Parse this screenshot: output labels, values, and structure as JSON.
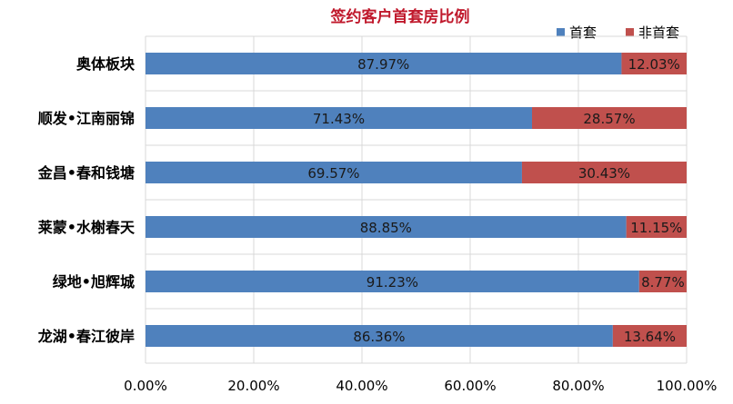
{
  "chart_data": {
    "type": "bar",
    "orientation": "horizontal",
    "stacked": true,
    "title": "签约客户首套房比例",
    "categories": [
      "奥体板块",
      "顺发•江南丽锦",
      "金昌•春和钱塘",
      "莱蒙•水榭春天",
      "绿地•旭辉城",
      "龙湖•春江彼岸"
    ],
    "series": [
      {
        "name": "首套",
        "color": "#4f81bd",
        "values": [
          87.97,
          71.43,
          69.57,
          88.85,
          91.23,
          86.36
        ],
        "labels": [
          "87.97%",
          "71.43%",
          "69.57%",
          "88.85%",
          "91.23%",
          "86.36%"
        ]
      },
      {
        "name": "非首套",
        "color": "#c0504d",
        "values": [
          12.03,
          28.57,
          30.43,
          11.15,
          8.77,
          13.64
        ],
        "labels": [
          "12.03%",
          "28.57%",
          "30.43%",
          "11.15%",
          "8.77%",
          "13.64%"
        ]
      }
    ],
    "xlim": [
      0,
      100
    ],
    "xticks": [
      "0.00%",
      "20.00%",
      "40.00%",
      "60.00%",
      "80.00%",
      "100.00%"
    ],
    "grid": true,
    "legend": "top-right"
  }
}
